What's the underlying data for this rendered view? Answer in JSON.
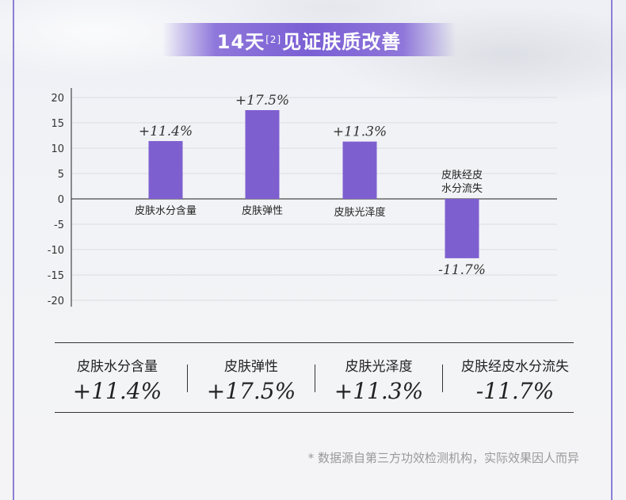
{
  "banner": {
    "title_prefix": "14天",
    "sup": "[2]",
    "title_suffix": "见证肤质改善"
  },
  "chart_data": {
    "type": "bar",
    "categories": [
      "皮肤水分含量",
      "皮肤弹性",
      "皮肤光泽度",
      "皮肤经皮水分流失"
    ],
    "values": [
      11.4,
      17.5,
      11.3,
      -11.7
    ],
    "value_labels": [
      "+11.4%",
      "+17.5%",
      "+11.3%",
      "-11.7%"
    ],
    "ylim": [
      -20,
      20
    ],
    "yticks": [
      20,
      15,
      10,
      5,
      0,
      -5,
      -10,
      -15,
      -20
    ],
    "grid": true,
    "bar_color": "#7e5fd0"
  },
  "summary": [
    {
      "name": "皮肤水分含量",
      "value": "+11.4%"
    },
    {
      "name": "皮肤弹性",
      "value": "+17.5%"
    },
    {
      "name": "皮肤光泽度",
      "value": "+11.3%"
    },
    {
      "name": "皮肤经皮水分流失",
      "value": "-11.7%"
    }
  ],
  "footnote": "* 数据源自第三方功效检测机构，实际效果因人而异"
}
